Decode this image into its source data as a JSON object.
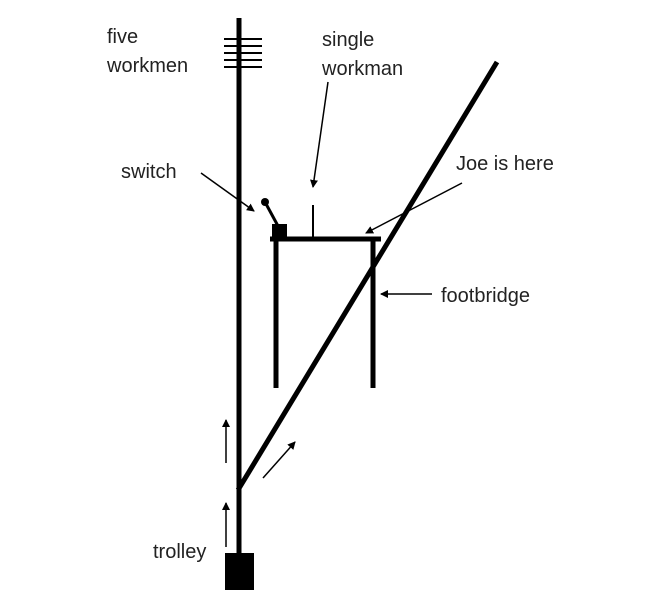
{
  "labels": {
    "five_workmen_line1": "five",
    "five_workmen_line2": "workmen",
    "single_workman_line1": "single",
    "single_workman_line2": "workman",
    "switch": "switch",
    "joe": "Joe is here",
    "footbridge": "footbridge",
    "trolley": "trolley"
  },
  "colors": {
    "ink": "#000000",
    "text": "#222222",
    "background": "#ffffff"
  }
}
